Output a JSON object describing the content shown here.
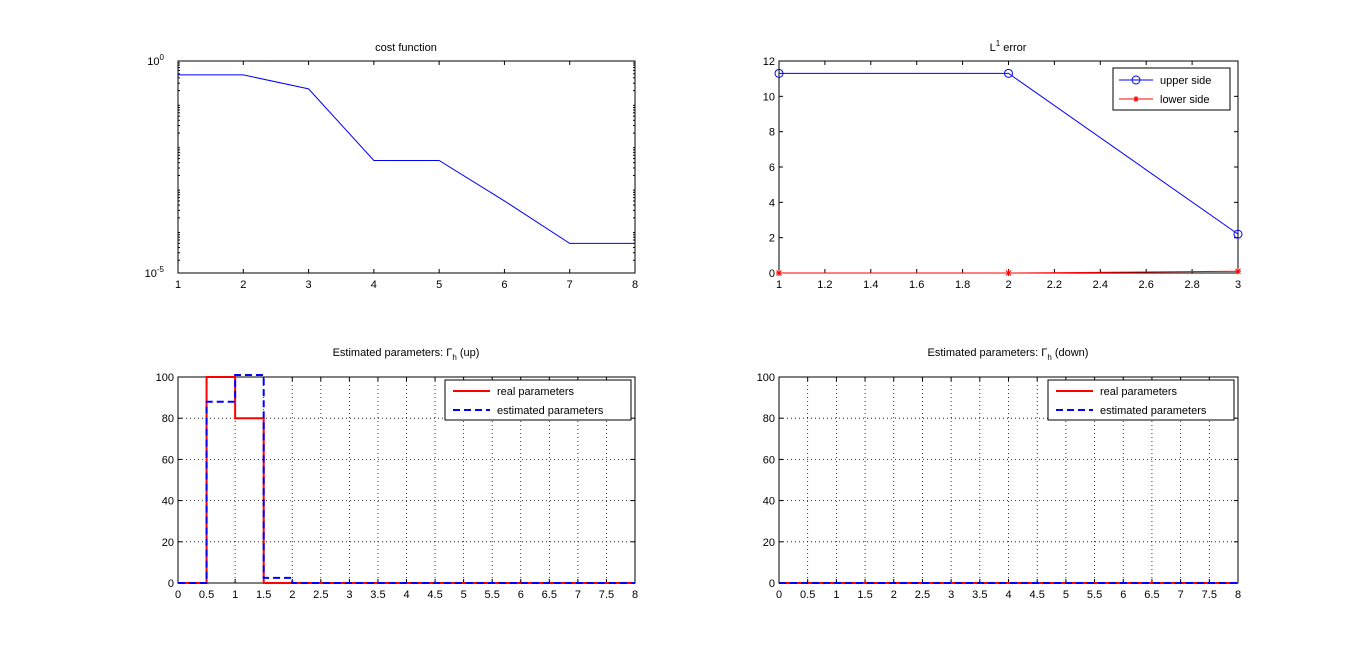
{
  "chart_data": [
    {
      "id": "cost",
      "type": "line",
      "title": "cost function",
      "yscale": "log",
      "xlim": [
        1,
        8
      ],
      "ylim_exponents": [
        -5,
        0
      ],
      "xticks": [
        1,
        2,
        3,
        4,
        5,
        6,
        7,
        8
      ],
      "xtick_labels": [
        "1",
        "2",
        "3",
        "4",
        "5",
        "6",
        "7",
        "8"
      ],
      "yticks": [
        {
          "base": "10",
          "exp": "-5",
          "value": 1e-05
        },
        {
          "base": "10",
          "exp": "0",
          "value": 1
        }
      ],
      "grid": false,
      "series": [
        {
          "color": "#0000ff",
          "x": [
            1,
            2,
            3,
            4,
            5,
            6,
            7,
            8
          ],
          "y": [
            0.47,
            0.47,
            0.22,
            0.0045,
            0.0045,
            0.0005,
            5e-05,
            5e-05
          ]
        }
      ]
    },
    {
      "id": "l1",
      "type": "line",
      "title_base": "L",
      "title_sup": "1",
      "title_rest": " error",
      "xlim": [
        1,
        3
      ],
      "ylim": [
        0,
        12
      ],
      "xticks": [
        1,
        1.2,
        1.4,
        1.6,
        1.8,
        2,
        2.2,
        2.4,
        2.6,
        2.8,
        3
      ],
      "xtick_labels": [
        "1",
        "1.2",
        "1.4",
        "1.6",
        "1.8",
        "2",
        "2.2",
        "2.4",
        "2.6",
        "2.8",
        "3"
      ],
      "yticks": [
        0,
        2,
        4,
        6,
        8,
        10,
        12
      ],
      "ytick_labels": [
        "0",
        "2",
        "4",
        "6",
        "8",
        "10",
        "12"
      ],
      "grid": false,
      "legend_position": "top-right",
      "series": [
        {
          "name": "upper side",
          "color": "#0000ff",
          "marker": "circle",
          "x": [
            1,
            2,
            3
          ],
          "y": [
            11.3,
            11.3,
            2.2
          ]
        },
        {
          "name": "lower side",
          "color": "#ff0000",
          "marker": "star",
          "x": [
            1,
            2,
            3
          ],
          "y": [
            0,
            0,
            0.1
          ]
        }
      ]
    },
    {
      "id": "up",
      "type": "line",
      "title_prefix": "Estimated parameters: ",
      "title_symbol": "Γ",
      "title_sub": "h",
      "title_suffix": " (up)",
      "xlim": [
        0,
        8
      ],
      "ylim": [
        0,
        100
      ],
      "xticks": [
        0,
        0.5,
        1,
        1.5,
        2,
        2.5,
        3,
        3.5,
        4,
        4.5,
        5,
        5.5,
        6,
        6.5,
        7,
        7.5,
        8
      ],
      "xtick_labels": [
        "0",
        "0.5",
        "1",
        "1.5",
        "2",
        "2.5",
        "3",
        "3.5",
        "4",
        "4.5",
        "5",
        "5.5",
        "6",
        "6.5",
        "7",
        "7.5",
        "8"
      ],
      "yticks": [
        0,
        20,
        40,
        60,
        80,
        100
      ],
      "ytick_labels": [
        "0",
        "20",
        "40",
        "60",
        "80",
        "100"
      ],
      "grid": true,
      "legend_position": "top-right",
      "series": [
        {
          "name": "real parameters",
          "color": "#ff0000",
          "style": "solid",
          "x": [
            0,
            0.5,
            0.5,
            1,
            1,
            1.5,
            1.5,
            8
          ],
          "y": [
            0,
            0,
            100,
            100,
            80,
            80,
            0,
            0
          ]
        },
        {
          "name": "estimated parameters",
          "color": "#0000ff",
          "style": "dashed",
          "x": [
            0,
            0.5,
            0.5,
            1,
            1,
            1.5,
            1.5,
            2,
            2,
            8
          ],
          "y": [
            0,
            0,
            88,
            88,
            101,
            101,
            2.5,
            2.5,
            0,
            0
          ]
        }
      ]
    },
    {
      "id": "down",
      "type": "line",
      "title_prefix": "Estimated parameters: ",
      "title_symbol": "Γ",
      "title_sub": "h",
      "title_suffix": " (down)",
      "xlim": [
        0,
        8
      ],
      "ylim": [
        0,
        100
      ],
      "xticks": [
        0,
        0.5,
        1,
        1.5,
        2,
        2.5,
        3,
        3.5,
        4,
        4.5,
        5,
        5.5,
        6,
        6.5,
        7,
        7.5,
        8
      ],
      "xtick_labels": [
        "0",
        "0.5",
        "1",
        "1.5",
        "2",
        "2.5",
        "3",
        "3.5",
        "4",
        "4.5",
        "5",
        "5.5",
        "6",
        "6.5",
        "7",
        "7.5",
        "8"
      ],
      "yticks": [
        0,
        20,
        40,
        60,
        80,
        100
      ],
      "ytick_labels": [
        "0",
        "20",
        "40",
        "60",
        "80",
        "100"
      ],
      "grid": true,
      "legend_position": "top-right",
      "series": [
        {
          "name": "real parameters",
          "color": "#ff0000",
          "style": "solid",
          "x": [
            0,
            8
          ],
          "y": [
            0,
            0
          ]
        },
        {
          "name": "estimated parameters",
          "color": "#0000ff",
          "style": "dashed",
          "x": [
            0,
            8
          ],
          "y": [
            0,
            0
          ]
        }
      ]
    }
  ]
}
